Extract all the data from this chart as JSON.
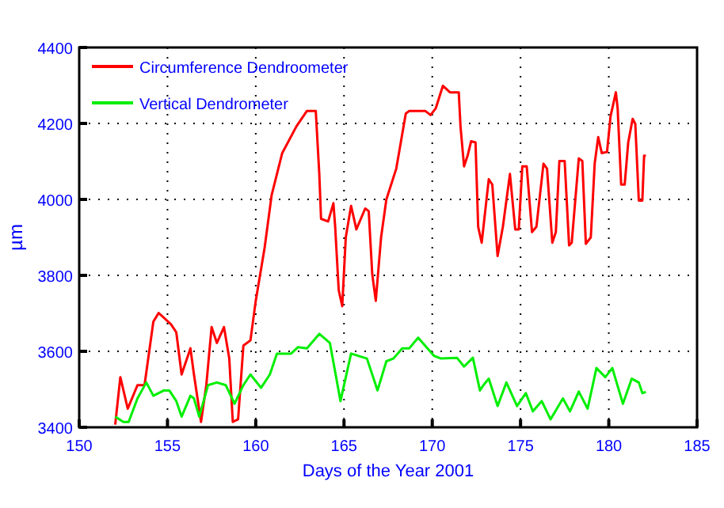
{
  "chart_data": {
    "type": "line",
    "xlabel": "Days of the Year 2001",
    "ylabel": "µm",
    "xlim": [
      150,
      185
    ],
    "xticks": [
      150,
      155,
      160,
      165,
      170,
      175,
      180,
      185
    ],
    "ylim": [
      3400,
      4400
    ],
    "yticks": [
      3400,
      3600,
      3800,
      4000,
      4200,
      4400
    ],
    "grid": true,
    "legend": "top left",
    "series": [
      {
        "name": "Circumference Dendroometer",
        "color": "#ff0000",
        "x": [
          152.04,
          152.33,
          152.75,
          153.3,
          153.7,
          154.2,
          154.5,
          155.2,
          155.5,
          155.8,
          156.3,
          156.5,
          156.9,
          157.2,
          157.5,
          157.8,
          158.2,
          158.5,
          158.7,
          159.0,
          159.3,
          159.7,
          160.0,
          160.5,
          160.9,
          161.5,
          162.3,
          162.9,
          163.4,
          163.6,
          163.7,
          164.1,
          164.4,
          164.5,
          164.7,
          164.9,
          165.1,
          165.4,
          165.7,
          166.2,
          166.4,
          166.6,
          166.8,
          167.1,
          167.4,
          167.96,
          168.5,
          168.7,
          169.6,
          169.9,
          170.2,
          170.6,
          171.0,
          171.5,
          171.6,
          171.8,
          172.0,
          172.2,
          172.45,
          172.6,
          172.8,
          173.2,
          173.4,
          173.7,
          174.0,
          174.4,
          174.7,
          174.9,
          175.1,
          175.35,
          175.65,
          175.9,
          176.3,
          176.5,
          176.8,
          177.0,
          177.2,
          177.5,
          177.75,
          177.9,
          178.3,
          178.5,
          178.7,
          178.98,
          179.2,
          179.4,
          179.6,
          179.9,
          180.1,
          180.4,
          180.5,
          180.7,
          180.9,
          181.1,
          181.35,
          181.5,
          181.7,
          181.9,
          182.0,
          182.1
        ],
        "values": [
          3407,
          3532,
          3449,
          3511,
          3511,
          3678,
          3701,
          3671,
          3650,
          3539,
          3608,
          3539,
          3414,
          3511,
          3664,
          3622,
          3664,
          3581,
          3414,
          3421,
          3615,
          3629,
          3733,
          3872,
          4011,
          4122,
          4192,
          4233,
          4233,
          4067,
          3949,
          3942,
          3990,
          3928,
          3761,
          3719,
          3900,
          3983,
          3921,
          3976,
          3969,
          3803,
          3733,
          3900,
          4000,
          4081,
          4226,
          4233,
          4233,
          4222,
          4240,
          4299,
          4282,
          4282,
          4192,
          4087,
          4115,
          4153,
          4150,
          3928,
          3886,
          4053,
          4039,
          3851,
          3928,
          4067,
          3921,
          3921,
          4087,
          4087,
          3914,
          3928,
          4094,
          4081,
          3886,
          3914,
          4101,
          4101,
          3879,
          3886,
          4108,
          4101,
          3883,
          3900,
          4094,
          4164,
          4122,
          4125,
          4219,
          4282,
          4240,
          4039,
          4039,
          4150,
          4212,
          4199,
          3997,
          3997,
          4115,
          4115
        ]
      },
      {
        "name": "Vertical Dendrometer",
        "color": "#00ee00",
        "x": [
          152.04,
          152.5,
          152.8,
          153.3,
          153.8,
          154.2,
          154.8,
          155.1,
          155.5,
          155.8,
          156.3,
          156.5,
          156.8,
          157.3,
          157.8,
          158.3,
          158.8,
          159.3,
          159.7,
          160.3,
          160.8,
          161.2,
          162.0,
          162.4,
          162.9,
          163.6,
          164.2,
          164.5,
          164.8,
          165.4,
          166.3,
          166.9,
          167.4,
          167.8,
          168.3,
          168.7,
          169.2,
          170.1,
          170.5,
          171.4,
          171.8,
          172.3,
          172.7,
          172.9,
          173.2,
          173.7,
          174.2,
          174.8,
          175.3,
          175.7,
          176.2,
          176.7,
          177.4,
          177.8,
          178.3,
          178.8,
          179.3,
          179.8,
          180.2,
          180.8,
          181.3,
          181.7,
          181.9,
          182.1
        ],
        "values": [
          3428,
          3414,
          3414,
          3476,
          3518,
          3483,
          3497,
          3497,
          3469,
          3428,
          3483,
          3476,
          3428,
          3511,
          3518,
          3511,
          3462,
          3511,
          3539,
          3504,
          3539,
          3594,
          3594,
          3611,
          3608,
          3646,
          3622,
          3546,
          3469,
          3594,
          3581,
          3497,
          3574,
          3581,
          3608,
          3608,
          3636,
          3588,
          3581,
          3583,
          3560,
          3583,
          3497,
          3511,
          3528,
          3456,
          3518,
          3456,
          3490,
          3442,
          3469,
          3421,
          3476,
          3442,
          3494,
          3449,
          3556,
          3532,
          3556,
          3462,
          3528,
          3518,
          3490,
          3493
        ]
      }
    ]
  }
}
